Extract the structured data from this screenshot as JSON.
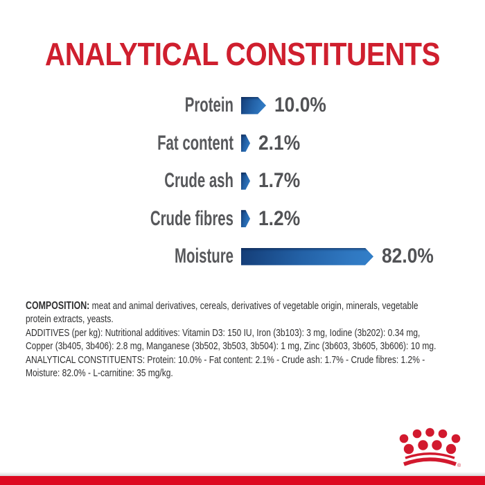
{
  "title": "ANALYTICAL CONSTITUENTS",
  "colors": {
    "title_red": "#cf1f2e",
    "bar_blue_dark": "#143d77",
    "bar_blue_light": "#3380ca",
    "label_gray": "#57585b",
    "logo_red": "#d2192e",
    "footer_bar_red": "#dd0a21"
  },
  "chart_data": {
    "type": "bar",
    "orientation": "horizontal",
    "bar_style": "arrow",
    "title": "ANALYTICAL CONSTITUENTS",
    "unit": "%",
    "xlim": [
      0,
      100
    ],
    "categories": [
      "Protein",
      "Fat content",
      "Crude ash",
      "Crude fibres",
      "Moisture"
    ],
    "values": [
      10.0,
      2.1,
      1.7,
      1.2,
      82.0
    ],
    "value_labels": [
      "10.0%",
      "2.1%",
      "1.7%",
      "1.2%",
      "82.0%"
    ]
  },
  "info": {
    "lines": [
      {
        "bold": "COMPOSITION:",
        "text": " meat and animal derivatives, cereals, derivatives of vegetable origin, minerals, vegetable"
      },
      {
        "bold": "",
        "text": "protein extracts, yeasts."
      },
      {
        "bold": "",
        "text": "ADDITIVES (per kg): Nutritional additives: Vitamin D3: 150 IU, Iron (3b103): 3 mg, Iodine (3b202): 0.34 mg,"
      },
      {
        "bold": "",
        "text": "Copper (3b405, 3b406): 2.8 mg, Manganese (3b502, 3b503, 3b504): 1 mg, Zinc (3b603, 3b605, 3b606): 10 mg."
      },
      {
        "bold": "",
        "text": "ANALYTICAL CONSTITUENTS: Protein: 10.0% - Fat content: 2.1% - Crude ash: 1.7% - Crude fibres: 1.2% -"
      },
      {
        "bold": "",
        "text": "Moisture: 82.0% - L-carnitine: 35 mg/kg."
      }
    ]
  },
  "logo": {
    "name": "royal-canin-crown",
    "registered_mark": "®"
  }
}
